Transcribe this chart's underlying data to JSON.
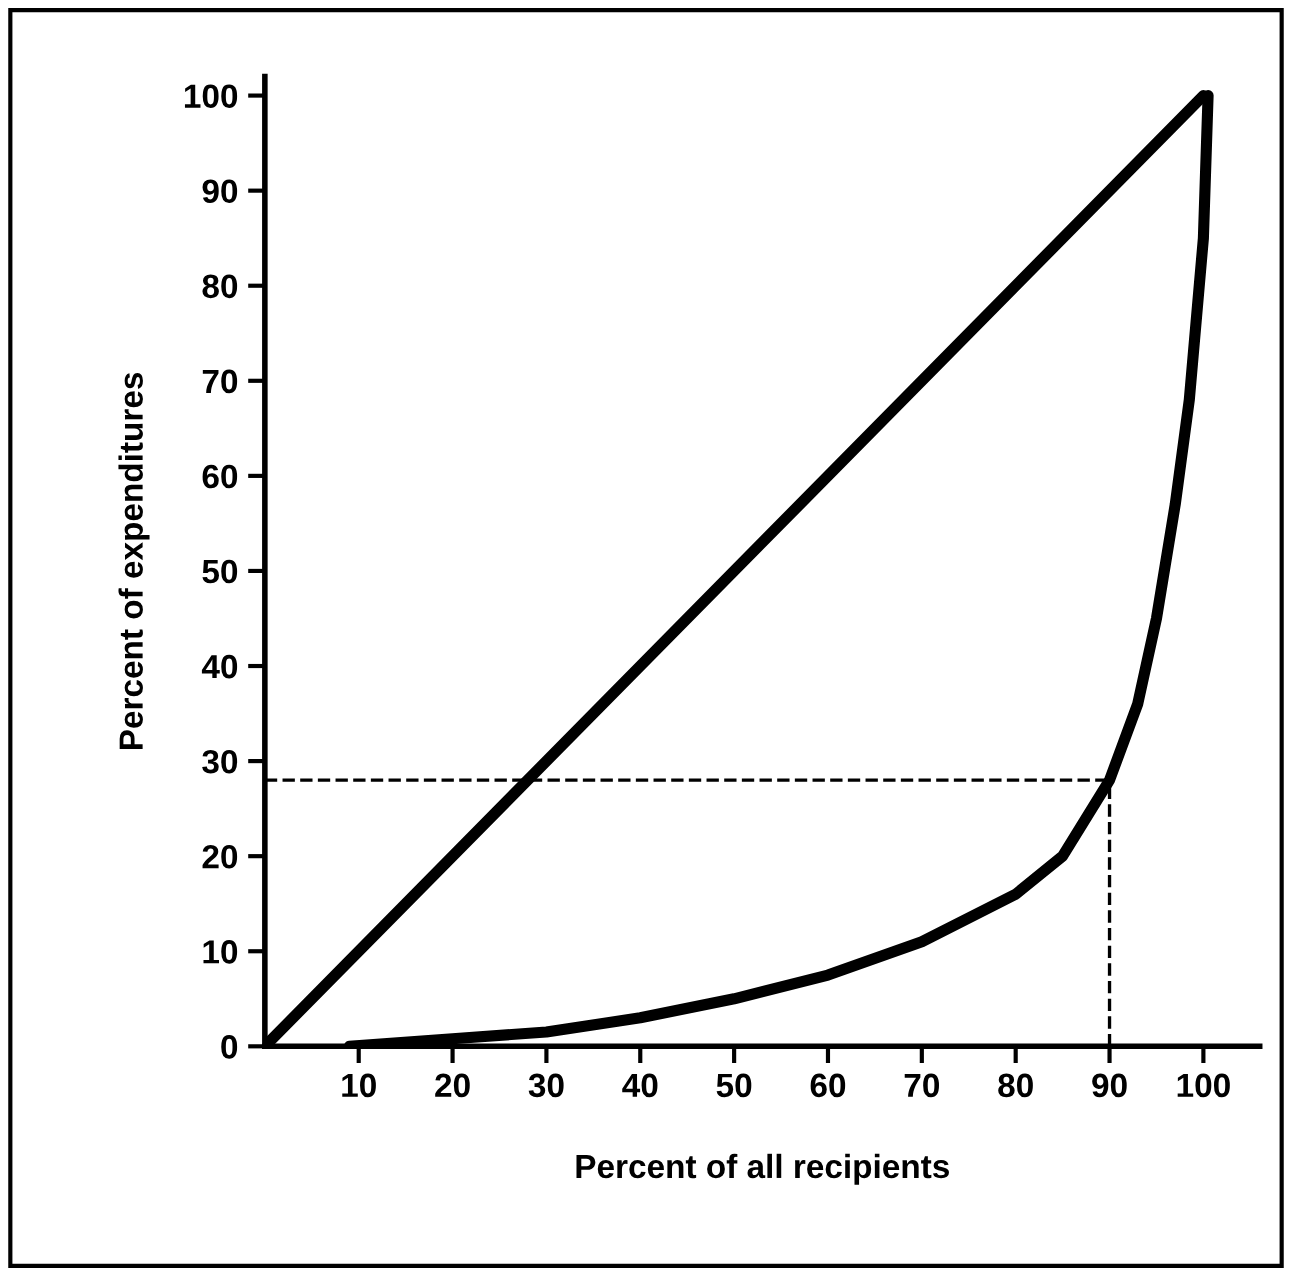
{
  "chart_data": {
    "type": "line",
    "xlabel": "Percent of all recipients",
    "ylabel": "Percent of expenditures",
    "series": [
      {
        "color": "#000000",
        "x": [
          0,
          100
        ],
        "values": [
          0,
          100
        ]
      },
      {
        "color": "#000000",
        "x": [
          9,
          20,
          30,
          40,
          50,
          60,
          70,
          80,
          85,
          90,
          93,
          95,
          97,
          98.5,
          100,
          100.5
        ],
        "values": [
          0,
          0.8,
          1.5,
          3,
          5,
          7.5,
          11,
          16,
          20,
          28,
          36,
          45,
          57,
          68,
          85,
          100
        ]
      }
    ],
    "xlim": [
      0,
      106
    ],
    "ylim": [
      0,
      102
    ],
    "xticks": [
      10,
      20,
      30,
      40,
      50,
      60,
      70,
      80,
      90,
      100
    ],
    "yticks": [
      0,
      10,
      20,
      30,
      40,
      50,
      60,
      70,
      80,
      90,
      100
    ],
    "ref_lines": [
      {
        "axis": "y",
        "value": 28,
        "line_style": "dashed",
        "color": "#000000"
      },
      {
        "axis": "x",
        "value": 90,
        "line_style": "dashed",
        "color": "#000000"
      }
    ],
    "grid": false,
    "legend": false,
    "marker": "none",
    "line_style": "solid"
  }
}
